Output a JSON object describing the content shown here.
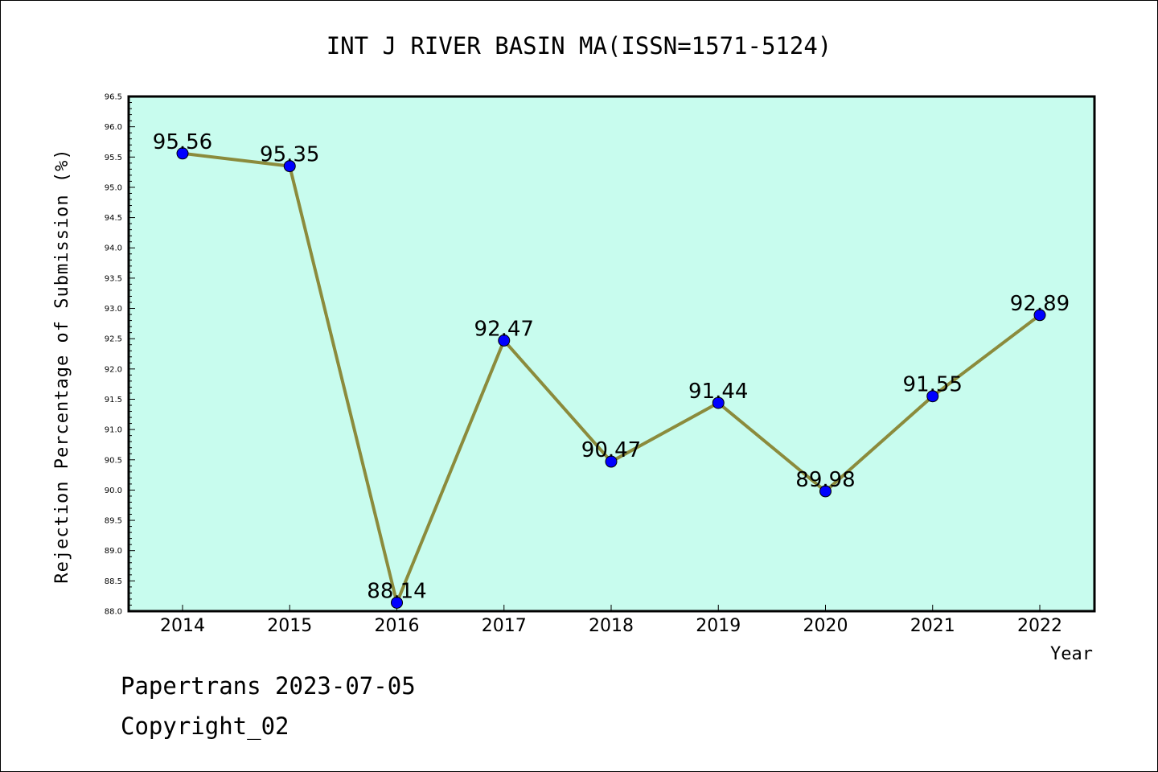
{
  "chart_data": {
    "type": "line",
    "title": "INT J RIVER BASIN MA(ISSN=1571-5124)",
    "xlabel": "Year",
    "ylabel": "Rejection Percentage of Submission (%)",
    "categories": [
      "2014",
      "2015",
      "2016",
      "2017",
      "2018",
      "2019",
      "2020",
      "2021",
      "2022"
    ],
    "series": [
      {
        "values": [
          95.56,
          95.35,
          88.14,
          92.47,
          90.47,
          91.44,
          89.98,
          91.55,
          92.89
        ]
      }
    ],
    "data_labels": [
      "95.56",
      "95.35",
      "88.14",
      "92.47",
      "90.47",
      "91.44",
      "89.98",
      "91.55",
      "92.89"
    ],
    "ylim": [
      88.0,
      96.5
    ],
    "yticks": [
      "88.0",
      "88.5",
      "89.0",
      "89.5",
      "90.0",
      "90.5",
      "91.0",
      "91.5",
      "92.0",
      "92.5",
      "93.0",
      "93.5",
      "94.0",
      "94.5",
      "95.0",
      "95.5",
      "96.0",
      "96.5"
    ],
    "grid": false,
    "colors": {
      "plot_bg": "#c8fcee",
      "line": "#8b8b3c",
      "marker": "#0000ff"
    }
  },
  "footer": {
    "line1": "Papertrans 2023-07-05",
    "line2": "Copyright_02"
  }
}
